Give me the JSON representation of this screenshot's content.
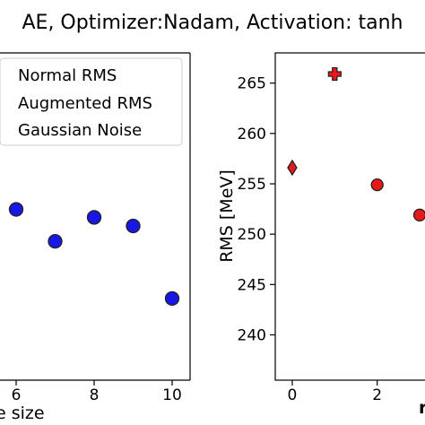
{
  "title": "AE, Optimizer:Nadam, Activation: tanh",
  "colors": {
    "blue_marker": "#1818e6",
    "red_marker": "#e61818",
    "marker_edge": "#222222",
    "axes": "#000000",
    "legend_frame": "#cccccc"
  },
  "legend": {
    "entries": [
      "Normal RMS",
      "Augmented RMS",
      "Gaussian Noise"
    ]
  },
  "chart_data": [
    {
      "type": "scatter",
      "title": "",
      "xlabel": "e size",
      "ylabel": "",
      "legend_placement": "top-left",
      "grid": false,
      "x_ticks": [
        6,
        8,
        10
      ],
      "series": [
        {
          "name": "Normal RMS",
          "marker": "circle",
          "color": "#1818e6",
          "x": [
            6,
            7,
            8,
            9,
            10
          ],
          "y": [
            251.6,
            246.4,
            250.3,
            248.9,
            237.1
          ]
        }
      ]
    },
    {
      "type": "scatter",
      "title": "",
      "xlabel": "",
      "ylabel": "RMS [MeV]",
      "legend_placement": "none",
      "grid": false,
      "xlim": [
        -0.4,
        3.4
      ],
      "ylim": [
        235.5,
        268.0
      ],
      "x_ticks": [
        0,
        2
      ],
      "y_ticks": [
        240,
        245,
        250,
        255,
        260,
        265
      ],
      "series": [
        {
          "name": "",
          "marker": "diamond",
          "color": "#e61818",
          "x": [
            0
          ],
          "y": [
            256.6
          ]
        },
        {
          "name": "",
          "marker": "plus",
          "color": "#e61818",
          "x": [
            1
          ],
          "y": [
            265.9
          ]
        },
        {
          "name": "",
          "marker": "circle",
          "color": "#e61818",
          "x": [
            2,
            3
          ],
          "y": [
            254.9,
            251.9
          ]
        }
      ],
      "x_axis_label_fragment": "r"
    }
  ]
}
